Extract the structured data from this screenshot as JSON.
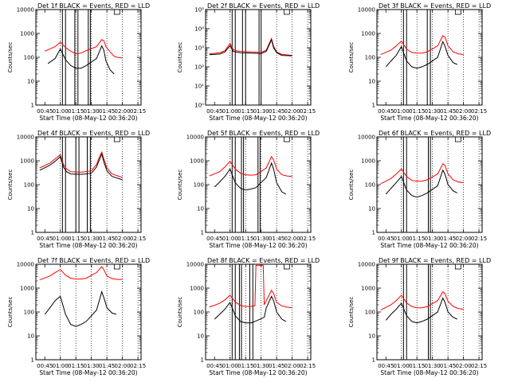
{
  "page": {
    "background": "#ffffff",
    "axis_color": "#000000"
  },
  "chart_data": [
    {
      "type": "line",
      "title": "Det 1f BLACK = Events, RED = LLD",
      "xlabel": "Start Time (08-May-12 00:36:20)",
      "ylabel": "Counts/sec",
      "xticks": [
        "00:45",
        "01:00",
        "01:15",
        "01:30",
        "01:45",
        "02:00",
        "02:15"
      ],
      "yscale": "log",
      "ylim": [
        1,
        10000
      ],
      "yticks": [
        "1",
        "10",
        "100",
        "1000",
        "10000"
      ],
      "grid": "dotted-vertical",
      "gap_markers_min": [
        62,
        65,
        74,
        77,
        87,
        89
      ],
      "series": [
        {
          "color": "#ff0000",
          "x_min": [
            45,
            55,
            60,
            65,
            70,
            75,
            80,
            85,
            95,
            100,
            102,
            104,
            108,
            112,
            115,
            120
          ],
          "y": [
            180,
            280,
            430,
            260,
            180,
            140,
            150,
            190,
            280,
            550,
            500,
            280,
            170,
            110,
            100,
            95
          ]
        },
        {
          "color": "#000000",
          "x_min": [
            48,
            55,
            60,
            65,
            70,
            75,
            80,
            85,
            95,
            100,
            102,
            104,
            108,
            112
          ],
          "y": [
            55,
            90,
            220,
            80,
            45,
            35,
            35,
            45,
            90,
            300,
            200,
            70,
            30,
            20
          ]
        }
      ]
    },
    {
      "type": "line",
      "title": "Det 2f BLACK = Events, RED = LLD",
      "xlabel": "Start Time (08-May-12 00:36:20)",
      "ylabel": "Counts/sec",
      "xticks": [
        "00:45",
        "01:00",
        "01:15",
        "01:30",
        "01:45",
        "02:00",
        "02:15"
      ],
      "yscale": "log",
      "ylim": [
        1,
        100000
      ],
      "yticks": [
        "10⁰",
        "10¹",
        "10²",
        "10³",
        "10⁴",
        "10⁵"
      ],
      "grid": "dotted-vertical",
      "gap_markers_min": [
        62,
        65,
        72,
        75,
        88,
        90
      ],
      "series": [
        {
          "color": "#ff0000",
          "x_min": [
            40,
            50,
            55,
            60,
            63,
            66,
            70,
            80,
            90,
            95,
            98,
            100,
            102,
            105,
            110,
            120
          ],
          "y": [
            480,
            550,
            700,
            1700,
            800,
            700,
            650,
            600,
            580,
            750,
            1800,
            3000,
            1200,
            600,
            450,
            400
          ]
        },
        {
          "color": "#000000",
          "x_min": [
            40,
            50,
            55,
            60,
            63,
            66,
            70,
            80,
            90,
            95,
            98,
            100,
            102,
            105,
            110,
            120
          ],
          "y": [
            430,
            470,
            600,
            1300,
            650,
            600,
            550,
            520,
            500,
            650,
            1500,
            2600,
            1000,
            550,
            400,
            380
          ]
        }
      ]
    },
    {
      "type": "line",
      "title": "Det 3f BLACK = Events, RED = LLD",
      "xlabel": "Start Time (08-May-12 00:36:20)",
      "ylabel": "Counts/sec",
      "xticks": [
        "00:45",
        "01:00",
        "01:15",
        "01:30",
        "01:45",
        "02:00",
        "02:15"
      ],
      "yscale": "log",
      "ylim": [
        1,
        10000
      ],
      "yticks": [
        "1",
        "10",
        "100",
        "1000",
        "10000"
      ],
      "grid": "dotted-vertical",
      "gap_markers_min": [
        62,
        65,
        85,
        88
      ],
      "series": [
        {
          "color": "#ff0000",
          "x_min": [
            40,
            50,
            55,
            60,
            65,
            70,
            75,
            80,
            85,
            95,
            100,
            102,
            105,
            110,
            115,
            120
          ],
          "y": [
            130,
            200,
            300,
            480,
            220,
            160,
            150,
            150,
            170,
            300,
            800,
            700,
            300,
            170,
            140,
            130
          ]
        },
        {
          "color": "#000000",
          "x_min": [
            45,
            50,
            55,
            60,
            65,
            70,
            75,
            80,
            85,
            95,
            100,
            102,
            105,
            110,
            114
          ],
          "y": [
            40,
            70,
            120,
            280,
            70,
            40,
            35,
            40,
            50,
            100,
            450,
            300,
            120,
            60,
            50
          ]
        }
      ]
    },
    {
      "type": "line",
      "title": "Det 4f BLACK = Events, RED = LLD",
      "xlabel": "Start Time (08-May-12 00:36:20)",
      "ylabel": "Counts/sec",
      "xticks": [
        "00:45",
        "01:00",
        "01:15",
        "01:30",
        "01:45",
        "02:00",
        "02:15"
      ],
      "yscale": "log",
      "ylim": [
        1,
        10000
      ],
      "yticks": [
        "1",
        "10",
        "100",
        "1000",
        "10000"
      ],
      "grid": "dotted-vertical",
      "gap_markers_min": [
        62,
        65,
        75,
        78,
        86,
        89
      ],
      "series": [
        {
          "color": "#ff0000",
          "x_min": [
            40,
            50,
            55,
            60,
            63,
            66,
            70,
            80,
            90,
            95,
            98,
            100,
            102,
            105,
            110,
            120
          ],
          "y": [
            500,
            800,
            1200,
            1800,
            700,
            450,
            350,
            330,
            380,
            700,
            1500,
            2300,
            1200,
            500,
            280,
            200
          ]
        },
        {
          "color": "#000000",
          "x_min": [
            40,
            50,
            55,
            60,
            63,
            66,
            70,
            80,
            90,
            95,
            98,
            100,
            102,
            105,
            110,
            120
          ],
          "y": [
            400,
            650,
            950,
            1500,
            550,
            350,
            280,
            270,
            300,
            550,
            1200,
            1900,
            900,
            380,
            220,
            160
          ]
        }
      ]
    },
    {
      "type": "line",
      "title": "Det 5f BLACK = Events, RED = LLD",
      "xlabel": "Start Time (08-May-12 00:36:20)",
      "ylabel": "Counts/sec",
      "xticks": [
        "00:45",
        "01:00",
        "01:15",
        "01:30",
        "01:45",
        "02:00",
        "02:15"
      ],
      "yscale": "log",
      "ylim": [
        1,
        10000
      ],
      "yticks": [
        "1",
        "10",
        "100",
        "1000",
        "10000"
      ],
      "grid": "dotted-vertical",
      "gap_markers_min": [
        62,
        65,
        71,
        73,
        87,
        89
      ],
      "series": [
        {
          "color": "#ff0000",
          "x_min": [
            40,
            50,
            55,
            60,
            65,
            70,
            75,
            80,
            85,
            95,
            100,
            102,
            105,
            110,
            115,
            120
          ],
          "y": [
            230,
            350,
            550,
            950,
            450,
            300,
            260,
            250,
            260,
            500,
            1500,
            1100,
            450,
            260,
            230,
            220
          ]
        },
        {
          "color": "#000000",
          "x_min": [
            45,
            50,
            55,
            60,
            65,
            70,
            75,
            80,
            85,
            95,
            100,
            102,
            105,
            110,
            114
          ],
          "y": [
            80,
            130,
            220,
            450,
            120,
            70,
            60,
            65,
            75,
            200,
            800,
            450,
            120,
            50,
            40
          ]
        }
      ]
    },
    {
      "type": "line",
      "title": "Det 6f BLACK = Events, RED = LLD",
      "xlabel": "Start Time (08-May-12 00:36:20)",
      "ylabel": "Counts/sec",
      "xticks": [
        "00:45",
        "01:00",
        "01:15",
        "01:30",
        "01:45",
        "02:00",
        "02:15"
      ],
      "yscale": "log",
      "ylim": [
        1,
        10000
      ],
      "yticks": [
        "1",
        "10",
        "100",
        "1000",
        "10000"
      ],
      "grid": "dotted-vertical",
      "gap_markers_min": [
        62,
        65,
        86,
        88
      ],
      "series": [
        {
          "color": "#ff0000",
          "x_min": [
            40,
            50,
            55,
            60,
            65,
            70,
            75,
            80,
            85,
            95,
            100,
            102,
            105,
            110,
            115,
            120
          ],
          "y": [
            110,
            180,
            280,
            450,
            220,
            150,
            140,
            140,
            160,
            280,
            750,
            650,
            280,
            160,
            130,
            120
          ]
        },
        {
          "color": "#000000",
          "x_min": [
            45,
            50,
            55,
            60,
            65,
            70,
            75,
            80,
            85,
            95,
            100,
            102,
            105,
            110,
            114
          ],
          "y": [
            40,
            70,
            120,
            220,
            60,
            35,
            30,
            35,
            45,
            90,
            400,
            280,
            100,
            55,
            45
          ]
        }
      ]
    },
    {
      "type": "line",
      "title": "Det 7f BLACK = Events, RED = LLD",
      "xlabel": "Start Time (08-May-12 00:36:20)",
      "ylabel": "Counts/sec",
      "xticks": [
        "00:45",
        "01:00",
        "01:15",
        "01:30",
        "01:45",
        "02:00",
        "02:15"
      ],
      "yscale": "log",
      "ylim": [
        1,
        10000
      ],
      "yticks": [
        "1",
        "10",
        "100",
        "1000",
        "10000"
      ],
      "grid": "dotted-vertical",
      "gap_markers_min": [],
      "series": [
        {
          "color": "#ff0000",
          "x_min": [
            40,
            50,
            55,
            60,
            65,
            70,
            75,
            80,
            85,
            95,
            100,
            102,
            105,
            110,
            115,
            120
          ],
          "y": [
            2200,
            3200,
            4500,
            6000,
            3500,
            2600,
            2400,
            2400,
            2600,
            4500,
            8000,
            6000,
            3200,
            2500,
            2300,
            2300
          ]
        },
        {
          "color": "#000000",
          "x_min": [
            45,
            50,
            55,
            60,
            65,
            70,
            75,
            80,
            85,
            95,
            100,
            102,
            105,
            110,
            114
          ],
          "y": [
            80,
            150,
            300,
            450,
            80,
            30,
            25,
            30,
            40,
            120,
            700,
            400,
            150,
            90,
            80
          ]
        }
      ]
    },
    {
      "type": "line",
      "title": "Det 8f BLACK = Events, RED = LLD",
      "xlabel": "Start Time (08-May-12 00:36:20)",
      "ylabel": "Counts/sec",
      "xticks": [
        "00:45",
        "01:00",
        "01:15",
        "01:30",
        "01:45",
        "02:00",
        "02:15"
      ],
      "yscale": "log",
      "ylim": [
        1,
        10000
      ],
      "yticks": [
        "1",
        "10",
        "100",
        "1000",
        "10000"
      ],
      "grid": "dotted-vertical",
      "gap_markers_min": [
        62,
        65,
        69,
        71,
        79,
        82
      ],
      "series": [
        {
          "color": "#ff0000",
          "x_min": [
            40,
            50,
            55,
            60,
            65,
            70,
            75,
            80,
            84,
            85,
            92,
            93,
            95,
            100,
            102,
            105,
            110,
            115,
            120
          ],
          "y": [
            160,
            230,
            320,
            500,
            260,
            190,
            170,
            170,
            180,
            9000,
            9000,
            200,
            300,
            800,
            600,
            250,
            180,
            160,
            150
          ]
        },
        {
          "color": "#000000",
          "x_min": [
            45,
            50,
            55,
            60,
            65,
            70,
            75,
            80,
            84,
            93,
            95,
            100,
            102,
            105,
            110,
            114
          ],
          "y": [
            50,
            80,
            130,
            250,
            70,
            40,
            35,
            35,
            40,
            60,
            150,
            450,
            300,
            100,
            50,
            40
          ]
        }
      ]
    },
    {
      "type": "line",
      "title": "Det 9f BLACK = Events, RED = LLD",
      "xlabel": "Start Time (08-May-12 00:36:20)",
      "ylabel": "Counts/sec",
      "xticks": [
        "00:45",
        "01:00",
        "01:15",
        "01:30",
        "01:45",
        "02:00",
        "02:15"
      ],
      "yscale": "log",
      "ylim": [
        1,
        10000
      ],
      "yticks": [
        "1",
        "10",
        "100",
        "1000",
        "10000"
      ],
      "grid": "dotted-vertical",
      "gap_markers_min": [
        62,
        65,
        86,
        88
      ],
      "series": [
        {
          "color": "#ff0000",
          "x_min": [
            40,
            50,
            55,
            60,
            65,
            70,
            75,
            80,
            85,
            95,
            100,
            102,
            105,
            110,
            115,
            120
          ],
          "y": [
            120,
            200,
            300,
            500,
            240,
            170,
            150,
            150,
            170,
            300,
            700,
            600,
            280,
            170,
            140,
            130
          ]
        },
        {
          "color": "#000000",
          "x_min": [
            45,
            50,
            55,
            60,
            65,
            70,
            75,
            80,
            85,
            95,
            100,
            102,
            105,
            110,
            114
          ],
          "y": [
            45,
            80,
            130,
            230,
            70,
            40,
            35,
            40,
            50,
            100,
            380,
            260,
            100,
            60,
            50
          ]
        }
      ]
    }
  ]
}
